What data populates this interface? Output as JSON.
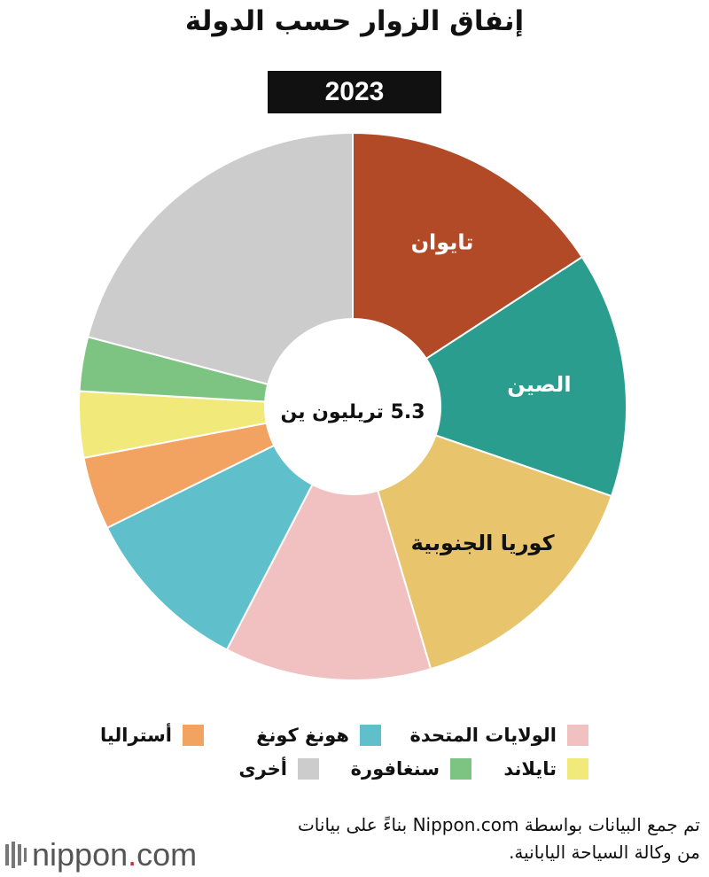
{
  "header": {
    "title": "إنفاق الزوار حسب الدولة",
    "year": "2023"
  },
  "chart_data": {
    "type": "pie",
    "style": "donut",
    "center_label": "5.3 تريليون ين",
    "slices": [
      {
        "label": "تايوان",
        "value": 15.8,
        "color": "#b34a27",
        "show_label": true,
        "label_color": "#ffffff"
      },
      {
        "label": "الصين",
        "value": 14.5,
        "color": "#2a9d8e",
        "show_label": true,
        "label_color": "#ffffff"
      },
      {
        "label": "كوريا الجنوبية",
        "value": 15.1,
        "color": "#e8c56c",
        "show_label": true,
        "label_color": "#111111"
      },
      {
        "label": "الولايات المتحدة",
        "value": 12.2,
        "color": "#f0c1c0",
        "show_label": false
      },
      {
        "label": "هونغ كونغ",
        "value": 10.1,
        "color": "#5fc0cc",
        "show_label": false
      },
      {
        "label": "أستراليا",
        "value": 4.3,
        "color": "#f2a261",
        "show_label": false
      },
      {
        "label": "تايلاند",
        "value": 3.9,
        "color": "#f1e97a",
        "show_label": false
      },
      {
        "label": "سنغافورة",
        "value": 3.2,
        "color": "#7dc482",
        "show_label": false
      },
      {
        "label": "أخرى",
        "value": 20.9,
        "color": "#cccccc",
        "show_label": false
      }
    ],
    "legend_placement": "bottom"
  },
  "legend": [
    {
      "label": "الولايات المتحدة",
      "color": "#f0c1c0"
    },
    {
      "label": "هونغ كونغ",
      "color": "#5fc0cc"
    },
    {
      "label": "أستراليا",
      "color": "#f2a261"
    },
    {
      "label": "تايلاند",
      "color": "#f1e97a"
    },
    {
      "label": "سنغافورة",
      "color": "#7dc482"
    },
    {
      "label": "أخرى",
      "color": "#cccccc"
    }
  ],
  "footer": {
    "source_line1": "تم جمع البيانات بواسطة Nippon.com بناءً على بيانات",
    "source_line2": "من وكالة السياحة اليابانية.",
    "logo_name": "nippon",
    "logo_dot": ".",
    "logo_domain": "com",
    "logo_icon": "nippon-logo-icon"
  }
}
